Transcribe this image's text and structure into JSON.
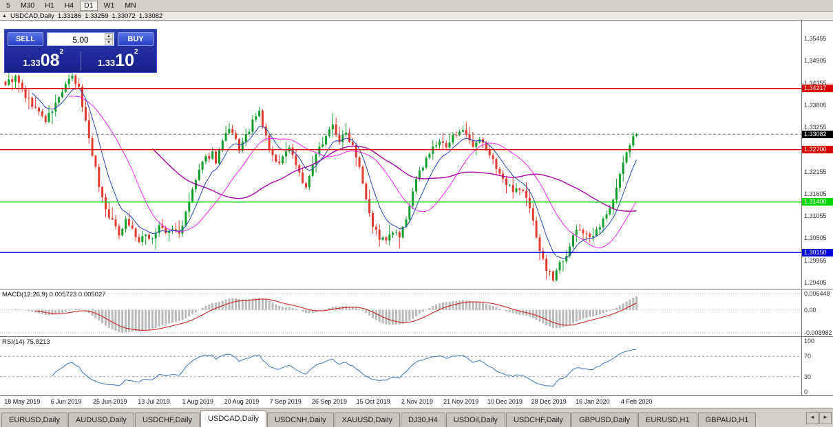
{
  "toolbar": {
    "timeframes": [
      "5",
      "M30",
      "H1",
      "H4",
      "D1",
      "W1",
      "MN"
    ],
    "active_timeframe": "D1"
  },
  "chart": {
    "title": "USDCAD,Daily",
    "ohlc": {
      "open": "1.33186",
      "high": "1.33259",
      "low": "1.33072",
      "close": "1.33082"
    }
  },
  "trade_panel": {
    "sell_label": "SELL",
    "buy_label": "BUY",
    "volume": "5.00",
    "bid": {
      "small": "1.33",
      "big": "08",
      "sup": "2"
    },
    "ask": {
      "small": "1.33",
      "big": "10",
      "sup": "2"
    }
  },
  "price_axis": {
    "labels": [
      "1.35455",
      "1.34905",
      "1.34355",
      "1.33805",
      "1.33255",
      "1.32705",
      "1.32155",
      "1.31605",
      "1.31055",
      "1.30505",
      "1.29955",
      "1.29405"
    ]
  },
  "hlines": [
    {
      "price": 1.34217,
      "label": "1.34217",
      "color": "#dd0000"
    },
    {
      "price": 1.327,
      "label": "1.32700",
      "color": "#dd0000"
    },
    {
      "price": 1.314,
      "label": "1.31400",
      "color": "#00d900"
    },
    {
      "price": 1.3015,
      "label": "1.30150",
      "color": "#0000d9"
    }
  ],
  "current_price": {
    "label": "1.33082",
    "value": 1.33082
  },
  "macd": {
    "label": "MACD(12,26,9)",
    "value_main": "0.005723",
    "value_signal": "0.005027",
    "axis_labels": [
      "0.006448",
      "0.00",
      "-0.008982"
    ],
    "axis_values": [
      0.006448,
      0,
      -0.008982
    ]
  },
  "rsi": {
    "label": "RSI(14)",
    "value": "75.8213",
    "axis_labels": [
      "100",
      "70",
      "30",
      "0"
    ],
    "axis_values": [
      100,
      70,
      30,
      0
    ],
    "levels": [
      70,
      30
    ]
  },
  "dates": [
    "18 May 2019",
    "6 Jun 2019",
    "25 Jun 2019",
    "13 Jul 2019",
    "1 Aug 2019",
    "20 Aug 2019",
    "7 Sep 2019",
    "26 Sep 2019",
    "15 Oct 2019",
    "2 Nov 2019",
    "21 Nov 2019",
    "10 Dec 2019",
    "28 Dec 2019",
    "16 Jan 2020",
    "4 Feb 2020"
  ],
  "tabs": {
    "items": [
      "EURUSD,Daily",
      "AUDUSD,Daily",
      "USDCHF,Daily",
      "USDCAD,Daily",
      "USDCNH,Daily",
      "XAUUSD,Daily",
      "DJ30,H4",
      "USDOil,Daily",
      "USDCHF,Daily",
      "GBPUSD,Daily",
      "EURUSD,H1",
      "GBPAUD,H1"
    ],
    "active_index": 3
  },
  "colors": {
    "candle_up": "#0f9d2a",
    "candle_down": "#e23a2e",
    "ma_fast": "#2244bb",
    "ma_mid": "#ff22ff",
    "ma_slow": "#aa00aa",
    "macd_hist": "#b9b9b9",
    "macd_signal": "#cc2222",
    "rsi_line": "#4a7ebb",
    "last_price_bg": "#000000"
  },
  "chart_data": {
    "type": "candlestick",
    "symbol": "USDCAD",
    "timeframe": "Daily",
    "bars": 190,
    "price_min": 1.2925,
    "price_max": 1.359,
    "last_close": 1.33082,
    "close_anchors": [
      [
        0,
        1.3435
      ],
      [
        3,
        1.3448
      ],
      [
        6,
        1.3402
      ],
      [
        9,
        1.3372
      ],
      [
        12,
        1.3342
      ],
      [
        14,
        1.3368
      ],
      [
        16,
        1.3398
      ],
      [
        18,
        1.3432
      ],
      [
        20,
        1.3448
      ],
      [
        22,
        1.342
      ],
      [
        24,
        1.334
      ],
      [
        26,
        1.3262
      ],
      [
        28,
        1.3182
      ],
      [
        30,
        1.3122
      ],
      [
        32,
        1.3092
      ],
      [
        34,
        1.3062
      ],
      [
        36,
        1.3098
      ],
      [
        38,
        1.3072
      ],
      [
        40,
        1.304
      ],
      [
        42,
        1.3058
      ],
      [
        44,
        1.305
      ],
      [
        46,
        1.3082
      ],
      [
        48,
        1.3062
      ],
      [
        50,
        1.3072
      ],
      [
        52,
        1.3062
      ],
      [
        54,
        1.311
      ],
      [
        56,
        1.317
      ],
      [
        58,
        1.3218
      ],
      [
        60,
        1.3248
      ],
      [
        62,
        1.3262
      ],
      [
        63,
        1.3242
      ],
      [
        65,
        1.329
      ],
      [
        67,
        1.3318
      ],
      [
        69,
        1.3292
      ],
      [
        70,
        1.3272
      ],
      [
        72,
        1.3302
      ],
      [
        74,
        1.3338
      ],
      [
        76,
        1.3362
      ],
      [
        77,
        1.333
      ],
      [
        79,
        1.3272
      ],
      [
        81,
        1.3235
      ],
      [
        83,
        1.3252
      ],
      [
        85,
        1.3278
      ],
      [
        87,
        1.3235
      ],
      [
        89,
        1.3192
      ],
      [
        90,
        1.3172
      ],
      [
        92,
        1.3232
      ],
      [
        94,
        1.3272
      ],
      [
        96,
        1.3308
      ],
      [
        98,
        1.333
      ],
      [
        100,
        1.3292
      ],
      [
        102,
        1.331
      ],
      [
        104,
        1.3282
      ],
      [
        106,
        1.3232
      ],
      [
        108,
        1.3152
      ],
      [
        110,
        1.3082
      ],
      [
        112,
        1.3052
      ],
      [
        114,
        1.3042
      ],
      [
        116,
        1.3066
      ],
      [
        118,
        1.3052
      ],
      [
        120,
        1.3092
      ],
      [
        122,
        1.317
      ],
      [
        124,
        1.3212
      ],
      [
        126,
        1.3252
      ],
      [
        128,
        1.3272
      ],
      [
        130,
        1.3292
      ],
      [
        132,
        1.3272
      ],
      [
        134,
        1.3302
      ],
      [
        136,
        1.3322
      ],
      [
        138,
        1.3302
      ],
      [
        140,
        1.3272
      ],
      [
        142,
        1.3292
      ],
      [
        144,
        1.3272
      ],
      [
        146,
        1.3242
      ],
      [
        148,
        1.3212
      ],
      [
        150,
        1.3182
      ],
      [
        152,
        1.3172
      ],
      [
        154,
        1.3176
      ],
      [
        156,
        1.3152
      ],
      [
        158,
        1.3092
      ],
      [
        160,
        1.3022
      ],
      [
        162,
        1.2972
      ],
      [
        164,
        1.2952
      ],
      [
        166,
        1.2988
      ],
      [
        168,
        1.3012
      ],
      [
        170,
        1.3058
      ],
      [
        172,
        1.3072
      ],
      [
        174,
        1.3062
      ],
      [
        176,
        1.3052
      ],
      [
        178,
        1.3078
      ],
      [
        180,
        1.3108
      ],
      [
        182,
        1.3152
      ],
      [
        184,
        1.3208
      ],
      [
        186,
        1.3262
      ],
      [
        188,
        1.3302
      ],
      [
        189,
        1.33082
      ]
    ],
    "indicators": [
      {
        "name": "MA fast",
        "type": "ema",
        "period": 8
      },
      {
        "name": "MA mid",
        "type": "sma",
        "period": 20
      },
      {
        "name": "MA slow",
        "type": "sma",
        "period": 45
      },
      {
        "name": "MACD",
        "params": [
          12,
          26,
          9
        ],
        "last_main": 0.005723,
        "last_signal": 0.005027
      },
      {
        "name": "RSI",
        "params": [
          14
        ],
        "last_value": 75.8213
      }
    ]
  }
}
